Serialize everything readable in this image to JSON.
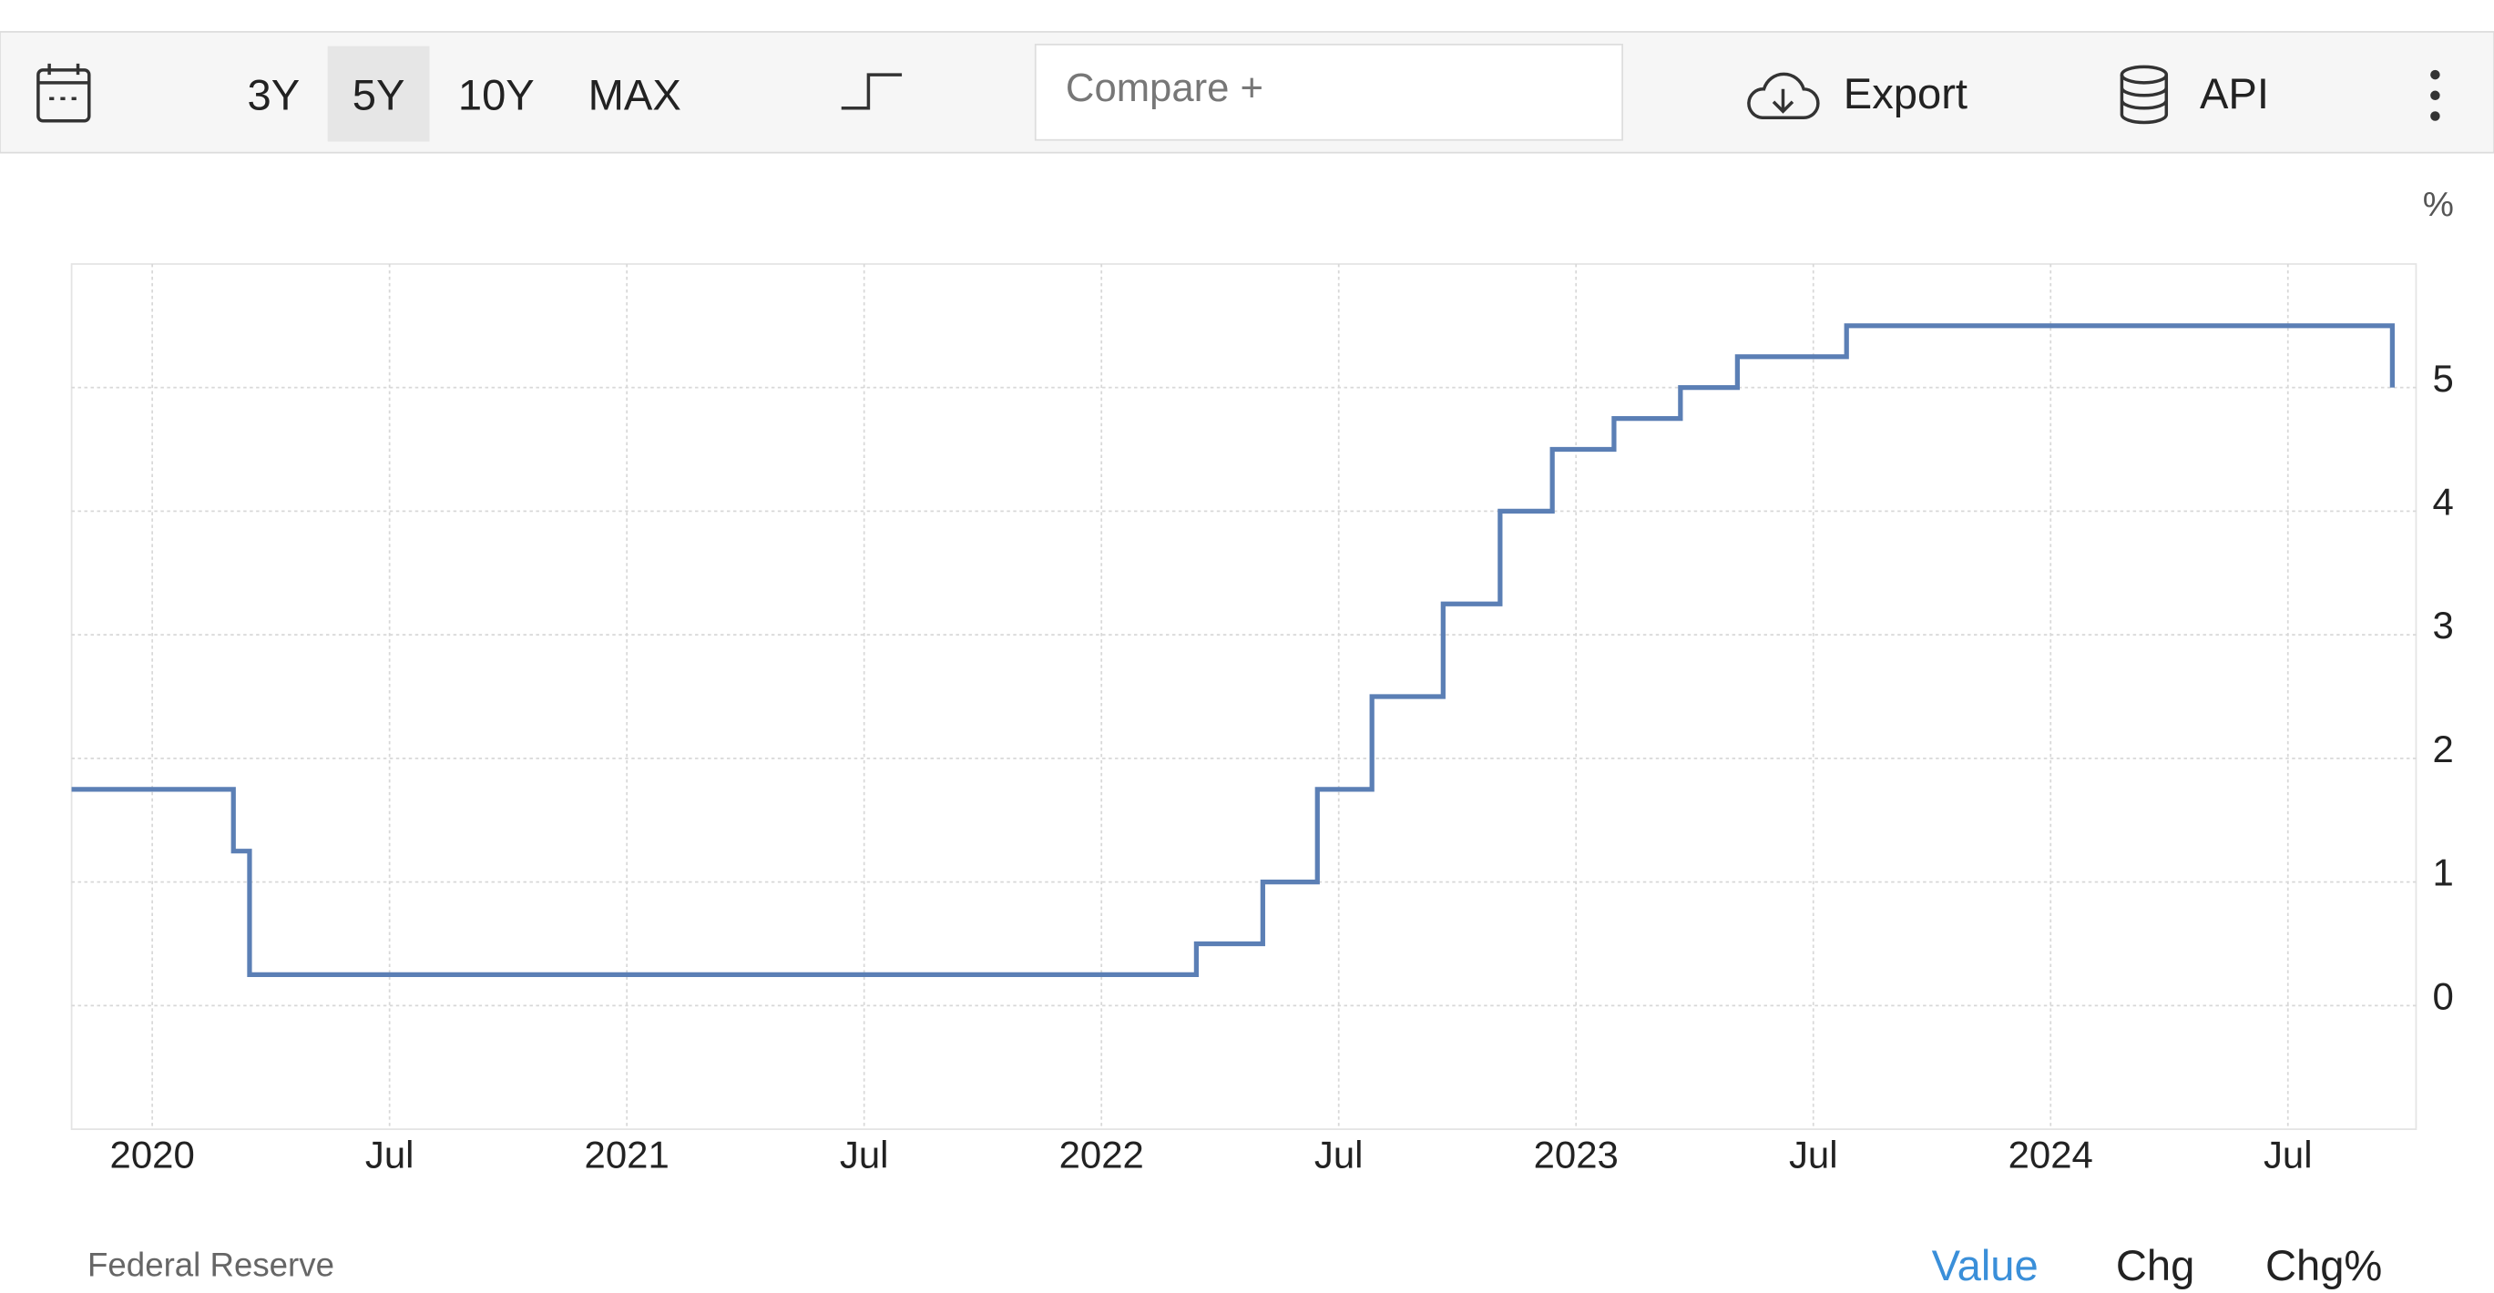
{
  "toolbar": {
    "ranges": [
      "3Y",
      "5Y",
      "10Y",
      "MAX"
    ],
    "selected_range": 1,
    "compare": "Compare +",
    "export": "Export",
    "api": "API"
  },
  "chart_data": {
    "type": "line",
    "step": true,
    "y_unit": "%",
    "x": [
      2019.83,
      2020.171,
      2020.205,
      2022.2,
      2022.34,
      2022.455,
      2022.57,
      2022.72,
      2022.84,
      2022.95,
      2023.08,
      2023.22,
      2023.34,
      2023.57,
      2024.72
    ],
    "values": [
      1.75,
      1.25,
      0.25,
      0.5,
      1.0,
      1.75,
      2.5,
      3.25,
      4.0,
      4.5,
      4.75,
      5.0,
      5.25,
      5.5,
      5.0
    ],
    "color": "#5b7fb5",
    "xlim": [
      2019.83,
      2024.77
    ],
    "xticks": [
      {
        "value": 2020,
        "label": "2020"
      },
      {
        "value": 2020.5,
        "label": "Jul"
      },
      {
        "value": 2021,
        "label": "2021"
      },
      {
        "value": 2021.5,
        "label": "Jul"
      },
      {
        "value": 2022,
        "label": "2022"
      },
      {
        "value": 2022.5,
        "label": "Jul"
      },
      {
        "value": 2023,
        "label": "2023"
      },
      {
        "value": 2023.5,
        "label": "Jul"
      },
      {
        "value": 2024,
        "label": "2024"
      },
      {
        "value": 2024.5,
        "label": "Jul"
      }
    ],
    "ylim": [
      -1,
      6
    ],
    "yticks": [
      0,
      1,
      2,
      3,
      4,
      5
    ],
    "grid": true
  },
  "footer": {
    "source": "Federal Reserve",
    "tabs": [
      "Value",
      "Chg",
      "Chg%"
    ],
    "active_tab": 0
  }
}
